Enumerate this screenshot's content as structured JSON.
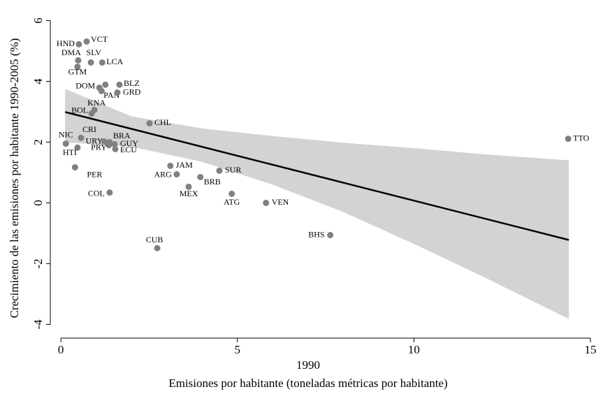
{
  "chart_data": {
    "type": "scatter",
    "ylabel": "Crecimiento de las emisiones por habitante 1990-2005 (%)",
    "xlabel_year": "1990",
    "xlabel": "Emisiones por habitante  (toneladas métricas por habitante)",
    "labels": [
      "HND",
      "VCT",
      "DMA",
      "SLV",
      "LCA",
      "GTM",
      "DOM",
      null,
      "PAN",
      "BLZ",
      "GRD",
      "KNA",
      "BOL",
      "CHL",
      "NIC",
      "CRI",
      "HTI",
      "URY",
      "BRA",
      "GUY",
      "PRY",
      "ECU",
      "TTO",
      "PER",
      "JAM",
      "ARG",
      "SUR",
      "BRB",
      "MEX",
      "COL",
      "ATG",
      "VEN",
      "BHS",
      "CUB"
    ],
    "x": [
      0.51,
      0.73,
      0.49,
      0.85,
      1.17,
      0.47,
      1.09,
      1.26,
      1.15,
      1.66,
      1.6,
      0.95,
      0.87,
      2.51,
      0.14,
      0.57,
      0.47,
      1.23,
      1.38,
      1.52,
      1.36,
      1.54,
      14.37,
      0.4,
      3.1,
      3.28,
      4.49,
      3.95,
      3.62,
      1.38,
      4.84,
      5.81,
      7.63,
      2.73
    ],
    "values": [
      5.22,
      5.31,
      4.69,
      4.62,
      4.62,
      4.48,
      3.79,
      3.89,
      3.68,
      3.89,
      3.63,
      3.06,
      2.94,
      2.62,
      1.95,
      2.14,
      1.82,
      2.02,
      2.0,
      1.93,
      1.9,
      1.77,
      2.11,
      1.17,
      1.22,
      0.94,
      1.06,
      0.85,
      0.53,
      0.34,
      0.3,
      0.0,
      -1.06,
      -1.49
    ],
    "color": "#808080",
    "fit": {
      "x": [
        0.12,
        14.39
      ],
      "values": [
        2.99,
        -1.22
      ],
      "color": "#000000"
    },
    "band": {
      "x": [
        0.12,
        2,
        4,
        6,
        8,
        10,
        12,
        14.39
      ],
      "upper": [
        3.75,
        2.85,
        2.45,
        2.2,
        1.98,
        1.8,
        1.6,
        1.4
      ],
      "lower": [
        1.99,
        1.85,
        1.35,
        0.6,
        -0.3,
        -1.35,
        -2.45,
        -3.82
      ],
      "color": "#d3d3d3"
    },
    "xlim": [
      -0.3,
      15
    ],
    "ylim": [
      -4.45,
      6.3
    ],
    "xticks": [
      0,
      5,
      10,
      15
    ],
    "yticks": [
      -4,
      -2,
      0,
      2,
      4,
      6
    ]
  }
}
